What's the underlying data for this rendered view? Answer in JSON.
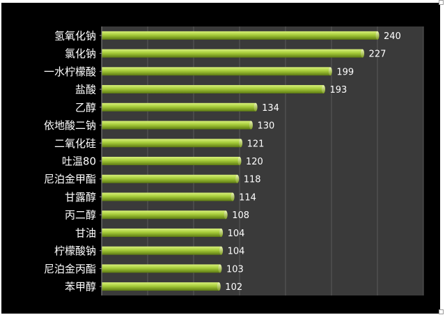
{
  "chart_data": {
    "type": "bar",
    "orientation": "horizontal",
    "categories": [
      "氢氧化钠",
      "氯化钠",
      "一水柠檬酸",
      "盐酸",
      "乙醇",
      "依地酸二钠",
      "二氧化硅",
      "吐温80",
      "尼泊金甲酯",
      "甘露醇",
      "丙二醇",
      "甘油",
      "柠檬酸钠",
      "尼泊金丙酯",
      "苯甲醇"
    ],
    "values": [
      240,
      227,
      199,
      193,
      134,
      130,
      121,
      120,
      118,
      114,
      108,
      104,
      104,
      103,
      102
    ],
    "data_labels": [
      "240",
      "227",
      "199",
      "193",
      "134",
      "130",
      "121",
      "120",
      "118",
      "114",
      "108",
      "104",
      "104",
      "103",
      "102"
    ],
    "title": "",
    "xlabel": "",
    "ylabel": "",
    "xlim": [
      0,
      280
    ],
    "grid": "vertical",
    "legend": "none",
    "colors": {
      "background": "#000000",
      "plot_area": "#3a3a3a",
      "grid": "#5a5a5a",
      "bar_light": "#d8f07a",
      "bar_mid": "#a6cc3a",
      "bar_dark": "#5d7a12",
      "text": "#ffffff"
    }
  }
}
